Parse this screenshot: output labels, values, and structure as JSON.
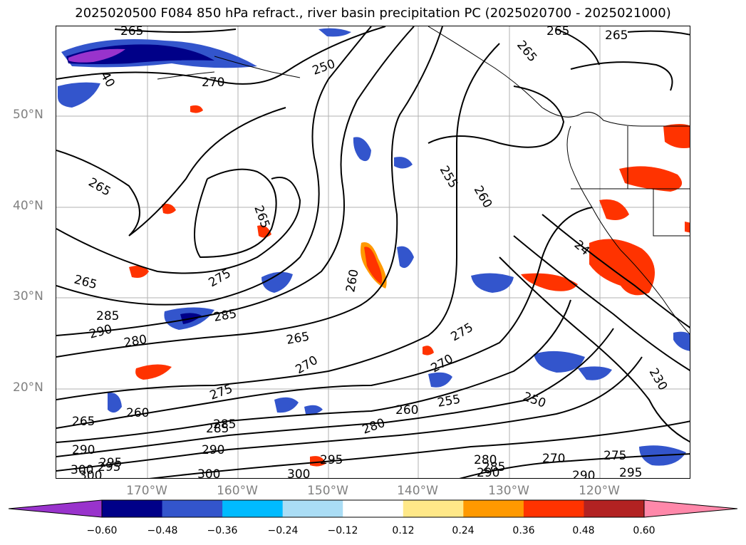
{
  "title": "2025020500 F084 850 hPa refract., river basin precipitation PC (2025020700 - 2025021000)",
  "map": {
    "latitude_labels": [
      "50°N",
      "40°N",
      "30°N",
      "20°N"
    ],
    "longitude_labels": [
      "170°W",
      "160°W",
      "150°W",
      "140°W",
      "130°W",
      "120°W"
    ],
    "contour_labels": [
      "265",
      "265",
      "265",
      "250",
      "270",
      "265",
      "40",
      "265",
      "275",
      "265",
      "285",
      "285",
      "290",
      "280",
      "265",
      "275",
      "270",
      "255",
      "260",
      "265",
      "260",
      "275",
      "280",
      "285",
      "290",
      "295",
      "290",
      "300",
      "300",
      "295",
      "250",
      "270",
      "275",
      "290",
      "295",
      "230",
      "255",
      "260",
      "270",
      "265",
      "260",
      "24",
      "280",
      "285",
      "285",
      "290",
      "300",
      "300",
      "295"
    ],
    "colors": {
      "land": "#ffffff",
      "contour": "#000000",
      "grid": "#a0a0a0"
    }
  },
  "colorbar": {
    "levels": [
      "−0.60",
      "−0.48",
      "−0.36",
      "−0.24",
      "−0.12",
      "0.12",
      "0.24",
      "0.36",
      "0.48",
      "0.60"
    ],
    "colors": [
      "#9933cc",
      "#000088",
      "#3355cc",
      "#00bbff",
      "#aaddf5",
      "#ffffff",
      "#ffe888",
      "#ff9900",
      "#ff3300",
      "#b22222",
      "#ff88aa"
    ]
  }
}
